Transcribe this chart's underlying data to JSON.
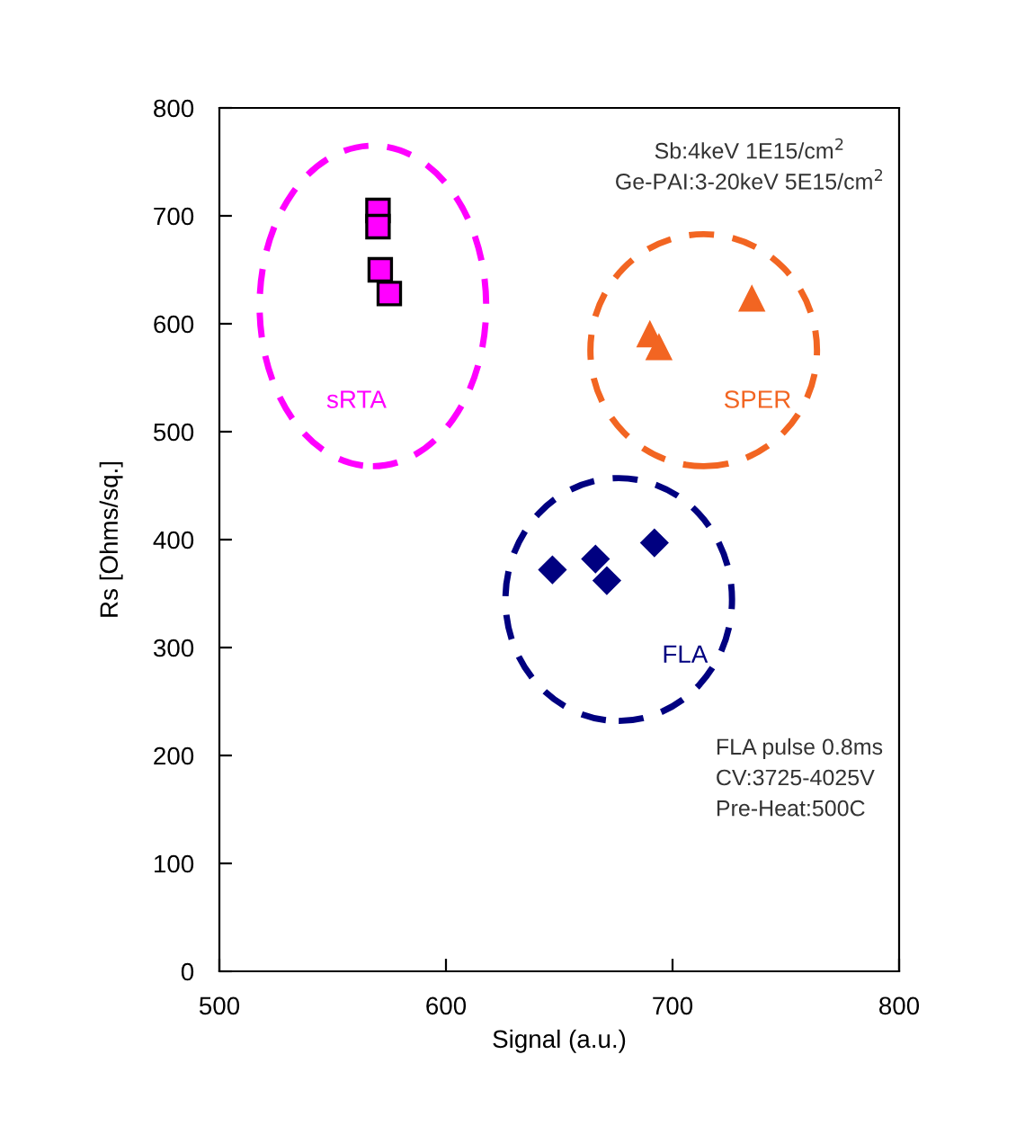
{
  "chart_data": {
    "type": "scatter",
    "xlabel": "Signal (a.u.)",
    "ylabel": "Rs [Ohms/sq.]",
    "xlim": [
      500,
      800
    ],
    "xticks": [
      500,
      600,
      700,
      800
    ],
    "ylim": [
      0,
      800
    ],
    "yticks": [
      0,
      100,
      200,
      300,
      400,
      500,
      600,
      700,
      800
    ],
    "grid": false,
    "legend": false,
    "series": [
      {
        "name": "sRTA",
        "color": "#ff00ff",
        "marker": "square",
        "x": [
          570,
          570,
          571,
          575
        ],
        "values": [
          705,
          690,
          650,
          628
        ]
      },
      {
        "name": "SPER",
        "color": "#f26522",
        "marker": "triangle",
        "x": [
          690,
          694,
          735
        ],
        "values": [
          590,
          578,
          623
        ]
      },
      {
        "name": "FLA",
        "color": "#000080",
        "marker": "diamond",
        "x": [
          647,
          666,
          671,
          692
        ],
        "values": [
          372,
          382,
          362,
          397
        ]
      }
    ],
    "annotations": [
      "Sb:4keV 1E15/cm$^{2}$\nGe-PAI:3-20keV 5E15/cm$^{2}$",
      "FLA pulse 0.8ms\nCV:3725-4025V\nPre-Heat:500C"
    ]
  }
}
